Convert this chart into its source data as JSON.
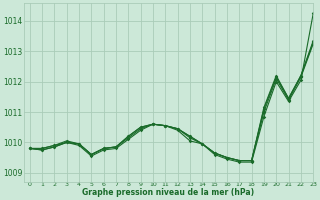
{
  "background_color": "#cce8d8",
  "grid_color": "#aaccb8",
  "line_color": "#1a6b2a",
  "text_color": "#1a6b2a",
  "xlabel": "Graphe pression niveau de la mer (hPa)",
  "xlim": [
    -0.5,
    23
  ],
  "ylim": [
    1008.7,
    1014.6
  ],
  "yticks": [
    1009,
    1010,
    1011,
    1012,
    1013,
    1014
  ],
  "xticks": [
    0,
    1,
    2,
    3,
    4,
    5,
    6,
    7,
    8,
    9,
    10,
    11,
    12,
    13,
    14,
    15,
    16,
    17,
    18,
    19,
    20,
    21,
    22,
    23
  ],
  "series": [
    [
      1009.8,
      1009.75,
      1009.85,
      1010.0,
      1009.9,
      1009.55,
      1009.75,
      1009.8,
      1010.1,
      1010.4,
      1010.6,
      1010.55,
      1010.4,
      1010.05,
      1009.95,
      1009.6,
      1009.45,
      1009.35,
      1009.35,
      1010.85,
      1012.0,
      1011.35,
      1012.05,
      1014.25
    ],
    [
      1009.8,
      1009.75,
      1009.85,
      1010.0,
      1009.95,
      1009.6,
      1009.8,
      1009.85,
      1010.15,
      1010.45,
      1010.6,
      1010.55,
      1010.45,
      1010.15,
      1009.95,
      1009.65,
      1009.5,
      1009.4,
      1009.4,
      1011.0,
      1012.1,
      1011.4,
      1012.15,
      1013.25
    ],
    [
      1009.8,
      1009.8,
      1009.9,
      1010.0,
      1009.95,
      1009.6,
      1009.8,
      1009.85,
      1010.2,
      1010.5,
      1010.6,
      1010.55,
      1010.45,
      1010.2,
      1009.95,
      1009.65,
      1009.5,
      1009.4,
      1009.4,
      1011.1,
      1012.15,
      1011.45,
      1012.2,
      1013.3
    ],
    [
      1009.8,
      1009.8,
      1009.9,
      1010.05,
      1009.95,
      1009.6,
      1009.8,
      1009.85,
      1010.2,
      1010.5,
      1010.6,
      1010.55,
      1010.45,
      1010.2,
      1009.95,
      1009.65,
      1009.5,
      1009.4,
      1009.4,
      1011.15,
      1012.2,
      1011.45,
      1012.2,
      1013.35
    ]
  ]
}
